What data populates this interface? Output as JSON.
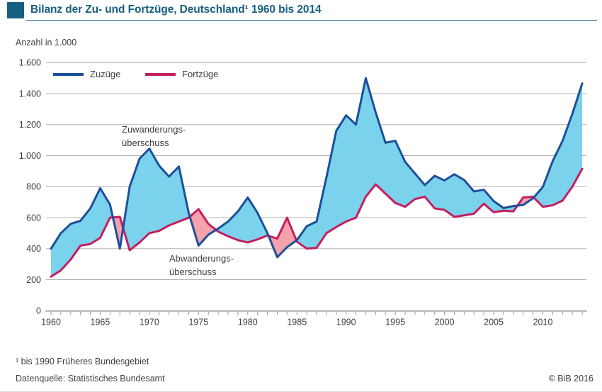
{
  "header": {
    "title": "Bilanz der Zu- und Fortzüge, Deutschland¹ 1960 bis 2014"
  },
  "axis_unit_label": "Anzahl in 1.000",
  "legend": {
    "items": [
      {
        "label": "Zuzüge",
        "color": "#1d4f99"
      },
      {
        "label": "Fortzüge",
        "color": "#c51e5f"
      }
    ]
  },
  "annotations": {
    "surplus": {
      "line1": "Zuwanderungs-",
      "line2": "überschuss"
    },
    "deficit": {
      "line1": "Abwanderungs-",
      "line2": "überschuss"
    }
  },
  "footer": {
    "note": "¹ bis 1990 Früheres Bundesgebiet",
    "source": "Datenquelle: Statistisches Bundesamt",
    "copyright": "© BiB 2016"
  },
  "colors": {
    "brand_teal": "#175f80",
    "line_zuzuege": "#1d4f99",
    "line_fortzuege": "#c51e5f",
    "fill_surplus": "#7bd2ec",
    "fill_deficit": "#f5a2ad",
    "grid": "#b3b3b3",
    "axis": "#9c9c9c",
    "text": "#3e3e3d"
  },
  "chart_data": {
    "type": "line",
    "title": "Bilanz der Zu- und Fortzüge, Deutschland 1960 bis 2014",
    "ylabel": "Anzahl in 1.000",
    "grid": true,
    "legend_position": "top-left",
    "x_start": 1960,
    "x_end": 2014,
    "ylim": [
      0,
      1600
    ],
    "y_tick_step": 200,
    "y_tick_labels": [
      "0",
      "200",
      "400",
      "600",
      "800",
      "1.000",
      "1.200",
      "1.400",
      "1.600"
    ],
    "x_tick_labels": [
      "1960",
      "1965",
      "1970",
      "1975",
      "1980",
      "1985",
      "1990",
      "1995",
      "2000",
      "2005",
      "2010"
    ],
    "x": [
      1960,
      1961,
      1962,
      1963,
      1964,
      1965,
      1966,
      1967,
      1968,
      1969,
      1970,
      1971,
      1972,
      1973,
      1974,
      1975,
      1976,
      1977,
      1978,
      1979,
      1980,
      1981,
      1982,
      1983,
      1984,
      1985,
      1986,
      1987,
      1988,
      1989,
      1990,
      1991,
      1992,
      1993,
      1994,
      1995,
      1996,
      1997,
      1998,
      1999,
      2000,
      2001,
      2002,
      2003,
      2004,
      2005,
      2006,
      2007,
      2008,
      2009,
      2010,
      2011,
      2012,
      2013,
      2014
    ],
    "series": [
      {
        "name": "Zuzüge",
        "color": "#1d4f99",
        "values": [
          400,
          500,
          560,
          580,
          660,
          790,
          685,
          400,
          800,
          980,
          1045,
          935,
          865,
          930,
          630,
          420,
          490,
          530,
          575,
          640,
          730,
          630,
          500,
          345,
          410,
          455,
          545,
          575,
          860,
          1160,
          1260,
          1200,
          1500,
          1280,
          1083,
          1096,
          960,
          885,
          810,
          870,
          840,
          880,
          843,
          769,
          780,
          707,
          662,
          675,
          682,
          725,
          798,
          965,
          1095,
          1270,
          1465
        ]
      },
      {
        "name": "Fortzüge",
        "color": "#c51e5f",
        "values": [
          220,
          260,
          330,
          420,
          430,
          470,
          600,
          605,
          390,
          440,
          500,
          515,
          550,
          575,
          600,
          655,
          560,
          510,
          480,
          455,
          440,
          460,
          485,
          465,
          600,
          445,
          400,
          405,
          500,
          540,
          575,
          600,
          735,
          815,
          755,
          695,
          670,
          720,
          735,
          660,
          650,
          605,
          615,
          626,
          690,
          635,
          645,
          640,
          730,
          735,
          670,
          680,
          710,
          800,
          915
        ]
      }
    ],
    "fill_between": {
      "surplus_label": "Zuwanderungsüberschuss",
      "surplus_color": "#7bd2ec",
      "deficit_label": "Abwanderungsüberschuss",
      "deficit_color": "#f5a2ad"
    }
  }
}
